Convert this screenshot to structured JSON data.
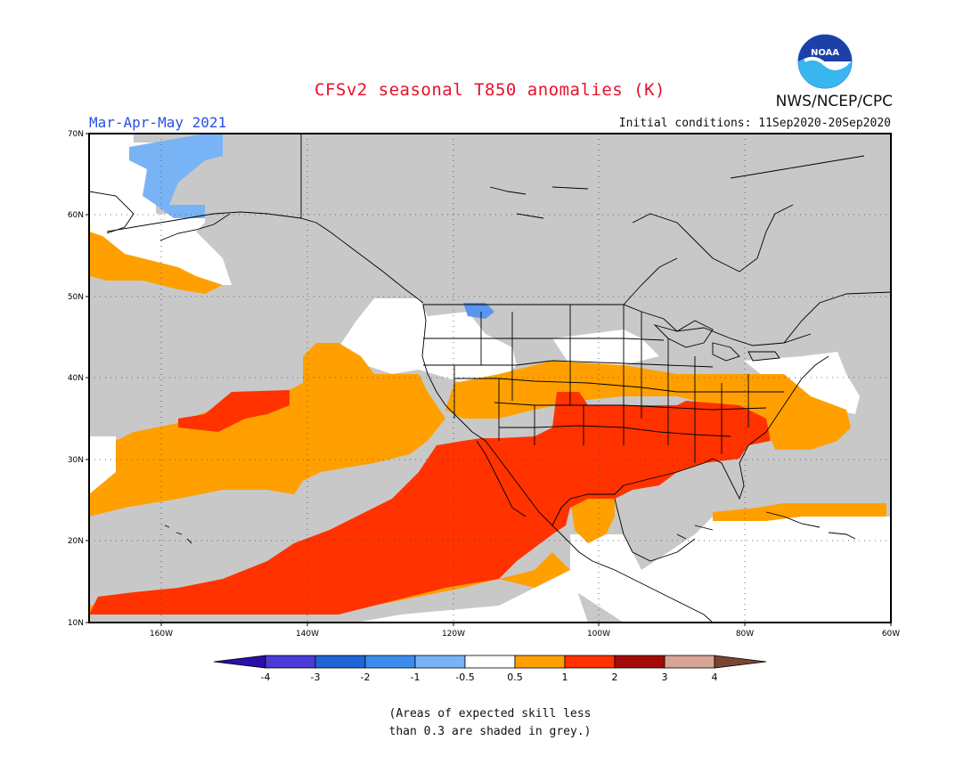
{
  "header": {
    "title": "CFSv2 seasonal T850 anomalies (K)",
    "season": "Mar-Apr-May 2021",
    "initial_conditions": "Initial conditions: 11Sep2020-20Sep2020",
    "organization": "NWS/NCEP/CPC",
    "logo_text": "NOAA"
  },
  "map": {
    "lat_labels": [
      "70N",
      "60N",
      "50N",
      "40N",
      "30N",
      "20N",
      "10N"
    ],
    "lon_labels": [
      "160W",
      "140W",
      "120W",
      "100W",
      "80W",
      "60W"
    ],
    "colors": {
      "grey": "#c8c8c8",
      "white": "#ffffff",
      "light_blue": "#78b4f5",
      "mid_blue": "#5a96ee",
      "orange": "#ffa000",
      "red_orange": "#ff3200"
    }
  },
  "colorbar": {
    "labels": [
      "-4",
      "-3",
      "-2",
      "-1",
      "-0.5",
      "0.5",
      "1",
      "2",
      "3",
      "4"
    ],
    "colors": [
      "#2a0fa8",
      "#4a3ad6",
      "#1e64d6",
      "#3c8cf0",
      "#78b4f5",
      "#ffffff",
      "#ffa000",
      "#ff3200",
      "#a50a0a",
      "#d7a596",
      "#7a4632"
    ]
  },
  "footnote": {
    "line1": "(Areas of expected skill less",
    "line2": "than 0.3 are shaded in grey.)"
  }
}
